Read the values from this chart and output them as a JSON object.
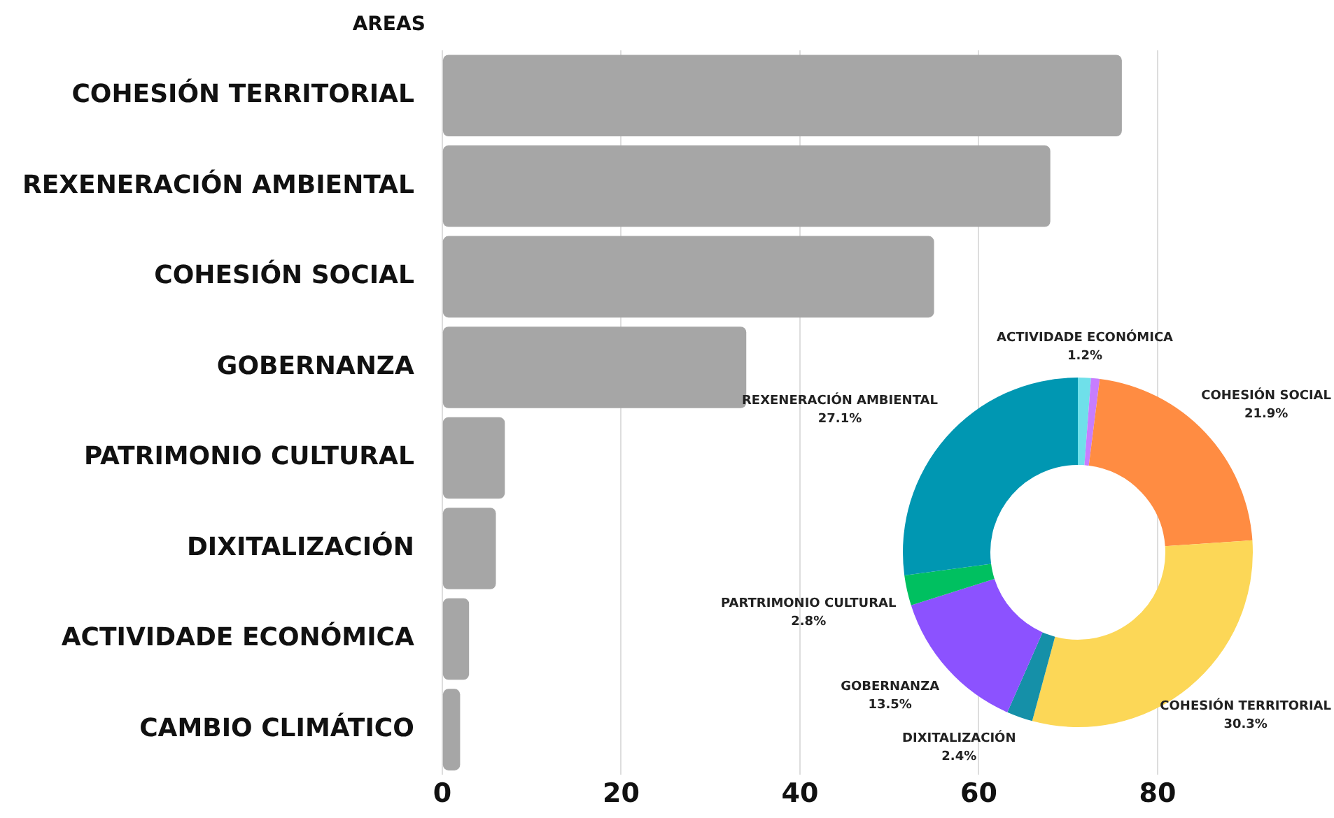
{
  "chart_data": [
    {
      "type": "bar",
      "orientation": "horizontal",
      "ylabel": "AREAS",
      "categories": [
        "COHESIÓN TERRITORIAL",
        "REXENERACIÓN AMBIENTAL",
        "COHESIÓN SOCIAL",
        "GOBERNANZA",
        "PATRIMONIO CULTURAL",
        "DIXITALIZACIÓN",
        "ACTIVIDADE ECONÓMICA",
        "CAMBIO CLIMÁTICO"
      ],
      "values": [
        76,
        68,
        55,
        34,
        7,
        6,
        3,
        2
      ],
      "color": "#a6a6a6",
      "xlim": [
        0,
        80
      ],
      "xticks": [
        0,
        20,
        40,
        60,
        80
      ],
      "grid": "x",
      "legend": false
    },
    {
      "type": "donut",
      "categories": [
        "ACTIVIDADE ECONÓMICA",
        null,
        "COHESIÓN SOCIAL",
        "COHESIÓN TERRITORIAL",
        "DIXITALIZACIÓN",
        "GOBERNANZA",
        "PARTRIMONIO CULTURAL",
        "REXENERACIÓN AMBIENTAL"
      ],
      "values": [
        1.2,
        0.8,
        21.9,
        30.3,
        2.4,
        13.5,
        2.8,
        27.1
      ],
      "colors": [
        "#6fe0ea",
        "#c77dff",
        "#ff8c42",
        "#fcd757",
        "#1590a8",
        "#8c52ff",
        "#00c060",
        "#0097b2"
      ],
      "value_labels": [
        "1.2%",
        null,
        "21.9%",
        "30.3%",
        "2.4%",
        "13.5%",
        "2.8%",
        "27.1%"
      ],
      "legend": false
    }
  ]
}
